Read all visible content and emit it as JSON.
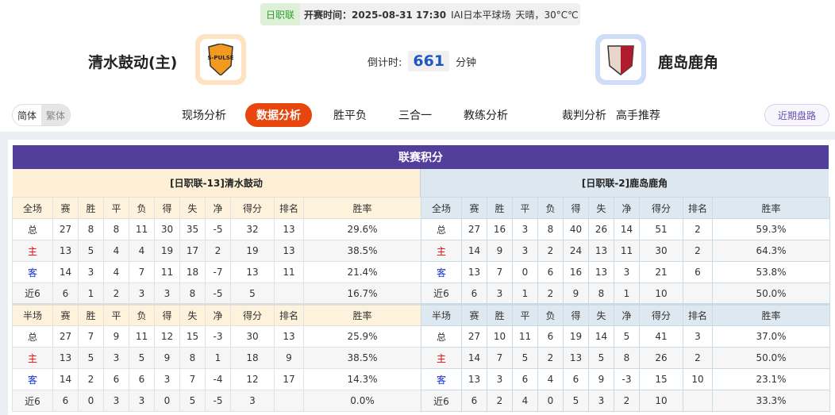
{
  "match": {
    "league": "日职联",
    "time_label": "开赛时间：2025-08-31 17:30",
    "venue": "IAI日本平球场",
    "weather": "天晴，30°C℃"
  },
  "home": {
    "name": "清水鼓动(主)",
    "table_title": "[日职联-13]清水鼓动",
    "logo_color": "#f29a1f"
  },
  "away": {
    "name": "鹿岛鹿角",
    "table_title": "[日职联-2]鹿岛鹿角",
    "logo_color": "#b01c2e"
  },
  "countdown": {
    "label": "倒计时:",
    "value": "661",
    "unit": "分钟"
  },
  "lang": {
    "simplified": "简体",
    "traditional": "繁体"
  },
  "tabs": [
    "现场分析",
    "数据分析",
    "胜平负",
    "三合一",
    "教练分析",
    "裁判分析",
    "高手推荐"
  ],
  "active_tab": "数据分析",
  "recent_button": "近期盘路",
  "section_title": "联赛积分",
  "columns": [
    "赛",
    "胜",
    "平",
    "负",
    "得",
    "失",
    "净",
    "得分",
    "排名",
    "胜率"
  ],
  "full_label": "全场",
  "half_label": "半场",
  "home_stats": {
    "full": [
      [
        "总",
        "27",
        "8",
        "8",
        "11",
        "30",
        "35",
        "-5",
        "32",
        "13",
        "29.6%"
      ],
      [
        "主",
        "13",
        "5",
        "4",
        "4",
        "19",
        "17",
        "2",
        "19",
        "13",
        "38.5%"
      ],
      [
        "客",
        "14",
        "3",
        "4",
        "7",
        "11",
        "18",
        "-7",
        "13",
        "11",
        "21.4%"
      ],
      [
        "近6",
        "6",
        "1",
        "2",
        "3",
        "3",
        "8",
        "-5",
        "5",
        "",
        "16.7%"
      ]
    ],
    "half": [
      [
        "总",
        "27",
        "7",
        "9",
        "11",
        "12",
        "15",
        "-3",
        "30",
        "13",
        "25.9%"
      ],
      [
        "主",
        "13",
        "5",
        "3",
        "5",
        "9",
        "8",
        "1",
        "18",
        "9",
        "38.5%"
      ],
      [
        "客",
        "14",
        "2",
        "6",
        "6",
        "3",
        "7",
        "-4",
        "12",
        "17",
        "14.3%"
      ],
      [
        "近6",
        "6",
        "0",
        "3",
        "3",
        "0",
        "5",
        "-5",
        "3",
        "",
        "0.0%"
      ]
    ]
  },
  "away_stats": {
    "full": [
      [
        "总",
        "27",
        "16",
        "3",
        "8",
        "40",
        "26",
        "14",
        "51",
        "2",
        "59.3%"
      ],
      [
        "主",
        "14",
        "9",
        "3",
        "2",
        "24",
        "13",
        "11",
        "30",
        "2",
        "64.3%"
      ],
      [
        "客",
        "13",
        "7",
        "0",
        "6",
        "16",
        "13",
        "3",
        "21",
        "6",
        "53.8%"
      ],
      [
        "近6",
        "6",
        "3",
        "1",
        "2",
        "9",
        "8",
        "1",
        "10",
        "",
        "50.0%"
      ]
    ],
    "half": [
      [
        "总",
        "27",
        "10",
        "11",
        "6",
        "19",
        "14",
        "5",
        "41",
        "3",
        "37.0%"
      ],
      [
        "主",
        "14",
        "7",
        "5",
        "2",
        "13",
        "5",
        "8",
        "26",
        "2",
        "50.0%"
      ],
      [
        "客",
        "13",
        "3",
        "6",
        "4",
        "6",
        "9",
        "-3",
        "15",
        "10",
        "23.1%"
      ],
      [
        "近6",
        "6",
        "2",
        "4",
        "0",
        "5",
        "3",
        "2",
        "10",
        "",
        "33.3%"
      ]
    ]
  }
}
